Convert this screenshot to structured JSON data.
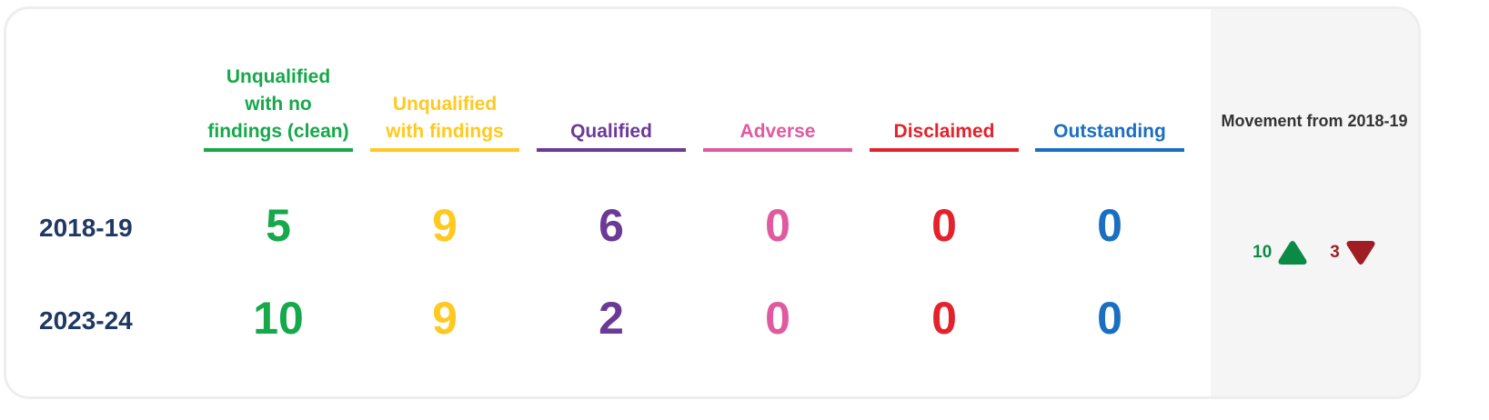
{
  "columns": [
    {
      "label": "Unqualified with no findings (clean)",
      "color": "#16a84a",
      "values": [
        "5",
        "10"
      ]
    },
    {
      "label": "Unqualified with findings",
      "color": "#ffc91f",
      "values": [
        "9",
        "9"
      ]
    },
    {
      "label": "Qualified",
      "color": "#6b3a96",
      "values": [
        "6",
        "2"
      ]
    },
    {
      "label": "Adverse",
      "color": "#e05aa0",
      "values": [
        "0",
        "0"
      ]
    },
    {
      "label": "Disclaimed",
      "color": "#e4222b",
      "values": [
        "0",
        "0"
      ]
    },
    {
      "label": "Outstanding",
      "color": "#1a6fc0",
      "values": [
        "0",
        "0"
      ]
    }
  ],
  "rows": [
    "2018-19",
    "2023-24"
  ],
  "movement": {
    "title": "Movement from 2018-19",
    "up": "10",
    "down": "3",
    "up_color": "#0a8a45",
    "down_color": "#a11d24",
    "up_icon": "triangle-up-icon",
    "down_icon": "triangle-down-icon"
  }
}
